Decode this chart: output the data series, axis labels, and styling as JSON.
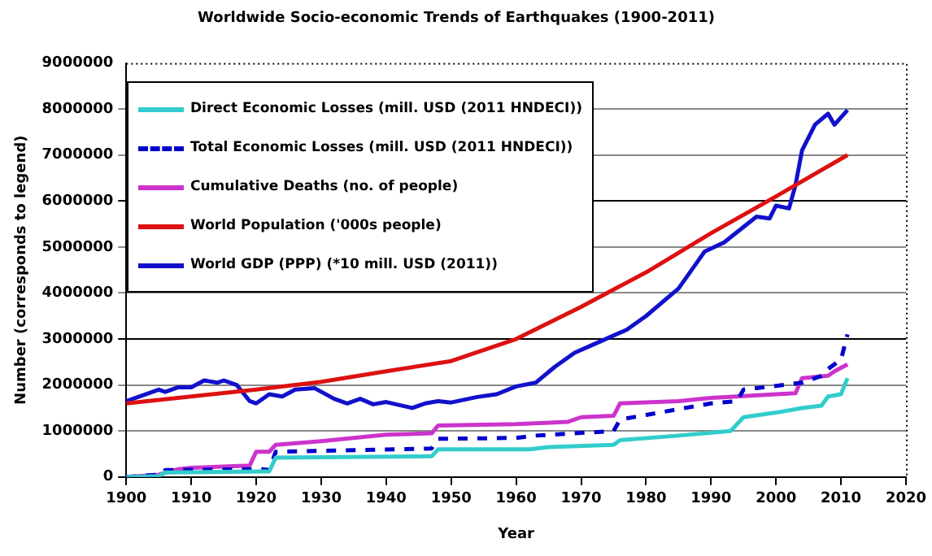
{
  "chart_data": {
    "type": "line",
    "title": "Worldwide Socio-economic Trends of Earthquakes (1900-2011)",
    "xlabel": "Year",
    "ylabel": "Number (corresponds to legend)",
    "xlim": [
      1900,
      2020
    ],
    "xticks": [
      1900,
      1910,
      1920,
      1930,
      1940,
      1950,
      1960,
      1970,
      1980,
      1990,
      2000,
      2010,
      2020
    ],
    "ylim": [
      0,
      9000000
    ],
    "yticks": [
      0,
      1000000,
      2000000,
      3000000,
      4000000,
      5000000,
      6000000,
      7000000,
      8000000,
      9000000
    ],
    "grid": "y",
    "legend": "top left",
    "marker": "none",
    "series": [
      {
        "name": "Direct Economic Losses (mill. USD (2011 HNDECI))",
        "color": "#33cccc",
        "line_style": "solid",
        "x": [
          1900,
          1905,
          1906,
          1921,
          1922,
          1923,
          1947,
          1948,
          1962,
          1965,
          1975,
          1976,
          1985,
          1993,
          1995,
          2000,
          2004,
          2007,
          2008,
          2010,
          2011
        ],
        "values": [
          0,
          20000,
          100000,
          120000,
          120000,
          420000,
          450000,
          600000,
          600000,
          650000,
          700000,
          800000,
          900000,
          1000000,
          1300000,
          1400000,
          1500000,
          1550000,
          1750000,
          1800000,
          2150000
        ]
      },
      {
        "name": "Total Economic Losses (mill. USD (2011 HNDECI))",
        "color": "#0000cc",
        "line_style": "dashed",
        "x": [
          1900,
          1905,
          1906,
          1921,
          1922,
          1923,
          1947,
          1948,
          1960,
          1963,
          1975,
          1976,
          1980,
          1990,
          1994,
          1995,
          2000,
          2004,
          2007,
          2008,
          2010,
          2011
        ],
        "values": [
          0,
          50000,
          150000,
          170000,
          150000,
          550000,
          620000,
          830000,
          850000,
          900000,
          1000000,
          1250000,
          1350000,
          1600000,
          1650000,
          1900000,
          1980000,
          2050000,
          2200000,
          2350000,
          2550000,
          3100000
        ]
      },
      {
        "name": "Cumulative Deaths (no. of people)",
        "color": "#cc33cc",
        "line_style": "solid",
        "x": [
          1900,
          1905,
          1908,
          1910,
          1919,
          1920,
          1922,
          1923,
          1930,
          1940,
          1947,
          1948,
          1960,
          1968,
          1970,
          1975,
          1976,
          1985,
          1990,
          2000,
          2003,
          2004,
          2008,
          2009,
          2011
        ],
        "values": [
          0,
          50000,
          170000,
          200000,
          250000,
          550000,
          550000,
          700000,
          780000,
          920000,
          950000,
          1120000,
          1150000,
          1200000,
          1300000,
          1330000,
          1600000,
          1650000,
          1720000,
          1800000,
          1820000,
          2150000,
          2200000,
          2300000,
          2450000
        ]
      },
      {
        "name": "World Population ('000s people)",
        "color": "#dd1111",
        "line_style": "solid",
        "x": [
          1900,
          1910,
          1920,
          1930,
          1940,
          1950,
          1960,
          1970,
          1980,
          1990,
          2000,
          2011
        ],
        "values": [
          1600000,
          1750000,
          1900000,
          2070000,
          2300000,
          2520000,
          3000000,
          3700000,
          4450000,
          5300000,
          6100000,
          7000000
        ]
      },
      {
        "name": "World GDP (PPP) (*10 mill. USD (2011))",
        "color": "#1111cc",
        "line_style": "solid",
        "x": [
          1900,
          1902,
          1905,
          1906,
          1908,
          1910,
          1912,
          1914,
          1915,
          1917,
          1919,
          1920,
          1922,
          1924,
          1926,
          1929,
          1932,
          1934,
          1936,
          1938,
          1940,
          1944,
          1946,
          1948,
          1950,
          1954,
          1957,
          1960,
          1963,
          1966,
          1969,
          1973,
          1977,
          1980,
          1985,
          1989,
          1992,
          1997,
          1999,
          2000,
          2002,
          2003,
          2004,
          2006,
          2008,
          2009,
          2011
        ],
        "values": [
          1650000,
          1750000,
          1900000,
          1850000,
          1950000,
          1950000,
          2100000,
          2050000,
          2100000,
          2000000,
          1650000,
          1600000,
          1800000,
          1750000,
          1900000,
          1930000,
          1700000,
          1600000,
          1700000,
          1580000,
          1630000,
          1500000,
          1600000,
          1650000,
          1620000,
          1740000,
          1800000,
          1970000,
          2050000,
          2400000,
          2700000,
          2950000,
          3200000,
          3500000,
          4100000,
          4900000,
          5100000,
          5660000,
          5620000,
          5900000,
          5840000,
          6350000,
          7100000,
          7660000,
          7900000,
          7660000,
          7980000
        ]
      }
    ]
  }
}
